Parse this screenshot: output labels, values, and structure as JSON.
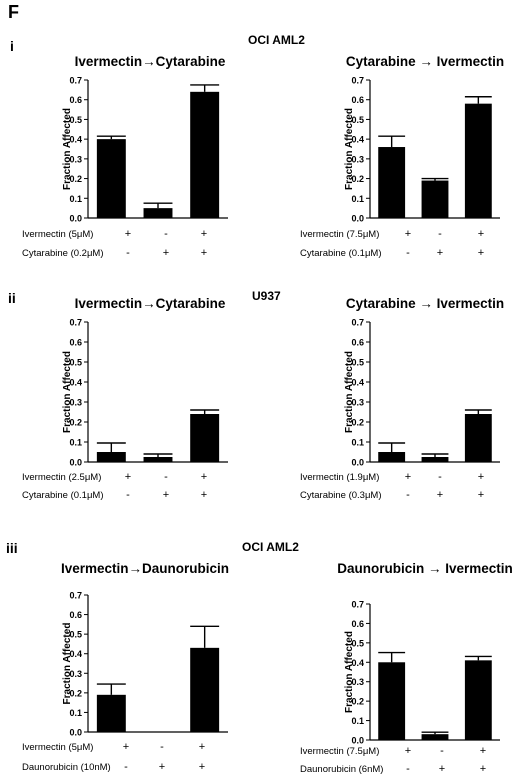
{
  "figure": {
    "panel_letter": "F",
    "sections": [
      {
        "roman": "i",
        "cell_line": "OCI AML2"
      },
      {
        "roman": "ii",
        "cell_line": "U937"
      },
      {
        "roman": "iii",
        "cell_line": "OCI AML2"
      }
    ]
  },
  "chart_data": [
    {
      "type": "bar",
      "title": "Ivermectin→Cytarabine",
      "ylabel": "Fraction Affected",
      "ylim": [
        0,
        0.7
      ],
      "yticks": [
        "0.0",
        "0.1",
        "0.2",
        "0.3",
        "0.4",
        "0.5",
        "0.6",
        "0.7"
      ],
      "values": [
        0.4,
        0.05,
        0.64
      ],
      "errors": [
        0.015,
        0.025,
        0.035
      ],
      "conditions": [
        {
          "label": "Ivermectin (5μM)",
          "signs": [
            "+",
            "-",
            "+"
          ]
        },
        {
          "label": "Cytarabine (0.2μM)",
          "signs": [
            "-",
            "+",
            "+"
          ]
        }
      ]
    },
    {
      "type": "bar",
      "title": "Cytarabine → Ivermectin",
      "ylabel": "Fraction Affected",
      "ylim": [
        0,
        0.7
      ],
      "yticks": [
        "0.0",
        "0.1",
        "0.2",
        "0.3",
        "0.4",
        "0.5",
        "0.6",
        "0.7"
      ],
      "values": [
        0.36,
        0.19,
        0.58
      ],
      "errors": [
        0.055,
        0.01,
        0.035
      ],
      "conditions": [
        {
          "label": "Ivermectin (7.5μM)",
          "signs": [
            "+",
            "-",
            "+"
          ]
        },
        {
          "label": "Cytarabine (0.1μM)",
          "signs": [
            "-",
            "+",
            "+"
          ]
        }
      ]
    },
    {
      "type": "bar",
      "title": "Ivermectin→Cytarabine",
      "ylabel": "Fraction Affected",
      "ylim": [
        0,
        0.7
      ],
      "yticks": [
        "0.0",
        "0.1",
        "0.2",
        "0.3",
        "0.4",
        "0.5",
        "0.6",
        "0.7"
      ],
      "values": [
        0.05,
        0.025,
        0.24
      ],
      "errors": [
        0.045,
        0.015,
        0.02
      ],
      "conditions": [
        {
          "label": "Ivermectin (2.5μM)",
          "signs": [
            "+",
            "-",
            "+"
          ]
        },
        {
          "label": "Cytarabine (0.1μM)",
          "signs": [
            "-",
            "+",
            "+"
          ]
        }
      ]
    },
    {
      "type": "bar",
      "title": "Cytarabine → Ivermectin",
      "ylabel": "Fraction Affected",
      "ylim": [
        0,
        0.7
      ],
      "yticks": [
        "0.0",
        "0.1",
        "0.2",
        "0.3",
        "0.4",
        "0.5",
        "0.6",
        "0.7"
      ],
      "values": [
        0.05,
        0.025,
        0.24
      ],
      "errors": [
        0.045,
        0.015,
        0.02
      ],
      "conditions": [
        {
          "label": "Ivermectin (1.9μM)",
          "signs": [
            "+",
            "-",
            "+"
          ]
        },
        {
          "label": "Cytarabine (0.3μM)",
          "signs": [
            "-",
            "+",
            "+"
          ]
        }
      ]
    },
    {
      "type": "bar",
      "title": "Ivermectin→Daunorubicin",
      "ylabel": "Fraction Affected",
      "ylim": [
        0,
        0.7
      ],
      "yticks": [
        "0.0",
        "0.1",
        "0.2",
        "0.3",
        "0.4",
        "0.5",
        "0.6",
        "0.7"
      ],
      "values": [
        0.19,
        0.0,
        0.43
      ],
      "errors": [
        0.055,
        0.0,
        0.11
      ],
      "conditions": [
        {
          "label": "Ivermectin (5μM)",
          "signs": [
            "+",
            "-",
            "+"
          ]
        },
        {
          "label": "Daunorubicin (10nM)",
          "signs": [
            "-",
            "+",
            "+"
          ]
        }
      ]
    },
    {
      "type": "bar",
      "title": "Daunorubicin → Ivermectin",
      "ylabel": "Fraction Affected",
      "ylim": [
        0,
        0.7
      ],
      "yticks": [
        "0.0",
        "0.1",
        "0.2",
        "0.3",
        "0.4",
        "0.5",
        "0.6",
        "0.7"
      ],
      "values": [
        0.4,
        0.03,
        0.41
      ],
      "errors": [
        0.05,
        0.01,
        0.02
      ],
      "conditions": [
        {
          "label": "Ivermectin (7.5μM)",
          "signs": [
            "+",
            "-",
            "+"
          ]
        },
        {
          "label": "Daunorubicin (6nM)",
          "signs": [
            "-",
            "+",
            "+"
          ]
        }
      ]
    }
  ]
}
